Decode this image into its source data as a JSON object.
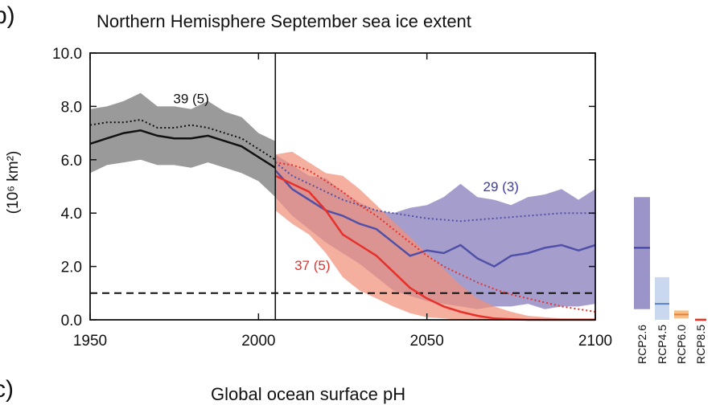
{
  "panel_b": {
    "letter": "b)",
    "title": "Northern Hemisphere September sea ice extent"
  },
  "panel_c": {
    "letter": "c)",
    "title": "Global ocean surface pH"
  },
  "chart_data": {
    "type": "line",
    "title": "Northern Hemisphere September sea ice extent",
    "xlabel": "",
    "ylabel": "(10⁶ km²)",
    "xlim": [
      1950,
      2100
    ],
    "ylim": [
      0,
      10
    ],
    "x_ticks": [
      1950,
      2000,
      2050,
      2100
    ],
    "x_tick_labels": [
      "1950",
      "2000",
      "2050",
      "2100"
    ],
    "y_ticks": [
      0,
      2,
      4,
      6,
      8,
      10
    ],
    "y_tick_labels": [
      "0.0",
      "2.0",
      "4.0",
      "6.0",
      "8.0",
      "10.0"
    ],
    "grid": false,
    "divider_year": 2005,
    "threshold": 1.0,
    "colors": {
      "historical": "#111111",
      "historical_band": "#9a9a9a",
      "rcp26": "#5050a8",
      "rcp26_band": "#9b94c8",
      "rcp85": "#e8302a",
      "rcp85_band": "#f0907a"
    },
    "series": [
      {
        "id": "historical",
        "x": [
          1950,
          1955,
          1960,
          1965,
          1970,
          1975,
          1980,
          1985,
          1990,
          1995,
          2000,
          2005
        ],
        "mean": [
          6.6,
          6.8,
          7.0,
          7.1,
          6.9,
          6.8,
          6.8,
          6.9,
          6.7,
          6.5,
          6.1,
          5.7
        ],
        "obs": [
          7.3,
          7.4,
          7.4,
          7.5,
          7.2,
          7.2,
          7.3,
          7.2,
          7.0,
          6.8,
          6.4,
          6.0
        ],
        "band_low": [
          5.5,
          5.8,
          5.9,
          6.0,
          5.8,
          5.8,
          5.7,
          5.9,
          5.7,
          5.5,
          5.2,
          4.6
        ],
        "band_high": [
          7.9,
          8.0,
          8.2,
          8.5,
          8.0,
          8.0,
          7.9,
          8.2,
          7.8,
          7.6,
          7.0,
          6.7
        ]
      },
      {
        "id": "rcp26",
        "x": [
          2005,
          2010,
          2015,
          2020,
          2025,
          2030,
          2035,
          2040,
          2045,
          2050,
          2055,
          2060,
          2065,
          2070,
          2075,
          2080,
          2085,
          2090,
          2095,
          2100
        ],
        "mean": [
          5.6,
          4.9,
          4.5,
          4.1,
          3.9,
          3.6,
          3.4,
          2.9,
          2.4,
          2.6,
          2.5,
          2.8,
          2.3,
          2.0,
          2.4,
          2.5,
          2.7,
          2.8,
          2.6,
          2.8
        ],
        "obs": [
          5.9,
          5.4,
          5.1,
          4.8,
          4.5,
          4.3,
          4.1,
          4.0,
          3.9,
          3.8,
          3.75,
          3.7,
          3.75,
          3.8,
          3.85,
          3.9,
          3.95,
          4.0,
          4.0,
          4.0
        ],
        "band_low": [
          4.6,
          3.9,
          3.4,
          2.9,
          2.5,
          2.1,
          1.6,
          1.1,
          0.9,
          0.7,
          0.6,
          0.5,
          0.4,
          0.5,
          0.5,
          0.6,
          0.4,
          0.5,
          0.5,
          0.6
        ],
        "band_high": [
          6.2,
          5.8,
          5.4,
          5.3,
          4.8,
          4.4,
          4.1,
          4.0,
          4.2,
          4.3,
          4.6,
          5.1,
          4.6,
          4.5,
          4.3,
          4.6,
          4.7,
          4.9,
          4.5,
          4.9
        ]
      },
      {
        "id": "rcp85",
        "x": [
          2005,
          2010,
          2015,
          2020,
          2025,
          2030,
          2035,
          2040,
          2045,
          2050,
          2055,
          2060,
          2065,
          2070,
          2075,
          2080,
          2085,
          2090,
          2095,
          2100
        ],
        "mean": [
          5.4,
          5.1,
          4.8,
          4.1,
          3.2,
          2.8,
          2.4,
          1.8,
          1.2,
          0.8,
          0.5,
          0.3,
          0.15,
          0.05,
          0.02,
          0.0,
          0.0,
          0.0,
          0.0,
          0.0
        ],
        "obs": [
          5.9,
          5.8,
          5.6,
          5.2,
          4.8,
          4.3,
          3.9,
          3.4,
          2.9,
          2.4,
          2.0,
          1.7,
          1.4,
          1.15,
          0.95,
          0.8,
          0.65,
          0.5,
          0.4,
          0.3
        ],
        "band_low": [
          4.1,
          3.6,
          3.2,
          2.5,
          1.6,
          1.1,
          0.8,
          0.5,
          0.25,
          0.1,
          0.05,
          0.0,
          0.0,
          0.0,
          0.0,
          0.0,
          0.0,
          0.0,
          0.0,
          0.0
        ],
        "band_high": [
          6.2,
          6.3,
          5.9,
          5.5,
          5.4,
          4.9,
          4.3,
          3.7,
          3.1,
          2.5,
          1.9,
          1.3,
          0.8,
          0.5,
          0.3,
          0.15,
          0.1,
          0.05,
          0.05,
          0.05
        ]
      }
    ],
    "annotations": [
      {
        "text": "39 (5)",
        "x": 1980,
        "y": 8.3,
        "color": "#111111"
      },
      {
        "text": "29 (3)",
        "x": 2072,
        "y": 5.0,
        "color": "#3c3ca0"
      },
      {
        "text": "37 (5)",
        "x": 2016,
        "y": 2.05,
        "color": "#e8302a"
      }
    ],
    "side_bars": [
      {
        "label": "RCP2.6",
        "low": 0.4,
        "high": 4.6,
        "median": 2.7,
        "fill": "#9b94c8",
        "line": "#3c3ca0"
      },
      {
        "label": "RCP4.5",
        "low": 0.0,
        "high": 1.6,
        "median": 0.6,
        "fill": "#c9d8ee",
        "line": "#5a82c0"
      },
      {
        "label": "RCP6.0",
        "low": 0.05,
        "high": 0.35,
        "median": 0.2,
        "fill": "#f6c08a",
        "line": "#e88030"
      },
      {
        "label": "RCP8.5",
        "low": 0.0,
        "high": 0.05,
        "median": 0.0,
        "fill": "#f0907a",
        "line": "#e8302a"
      }
    ]
  }
}
